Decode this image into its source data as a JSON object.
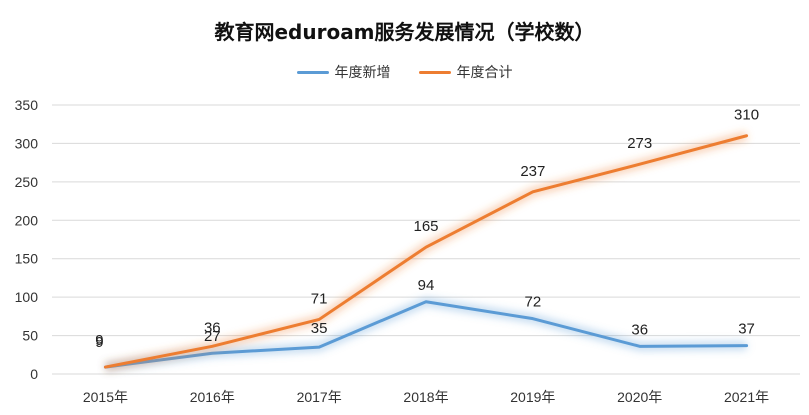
{
  "chart_data": {
    "type": "line",
    "title": "教育网eduroam服务发展情况（学校数）",
    "categories": [
      "2015年",
      "2016年",
      "2017年",
      "2018年",
      "2019年",
      "2020年",
      "2021年"
    ],
    "series": [
      {
        "name": "年度新增",
        "values": [
          9,
          27,
          35,
          94,
          72,
          36,
          37
        ],
        "color": "#5b9bd5"
      },
      {
        "name": "年度合计",
        "values": [
          9,
          36,
          71,
          165,
          237,
          273,
          310
        ],
        "color": "#ed7d31"
      }
    ],
    "ylim": [
      0,
      350
    ],
    "yticks": [
      0,
      50,
      100,
      150,
      200,
      250,
      300,
      350
    ],
    "grid": true,
    "legend_position": "top"
  }
}
